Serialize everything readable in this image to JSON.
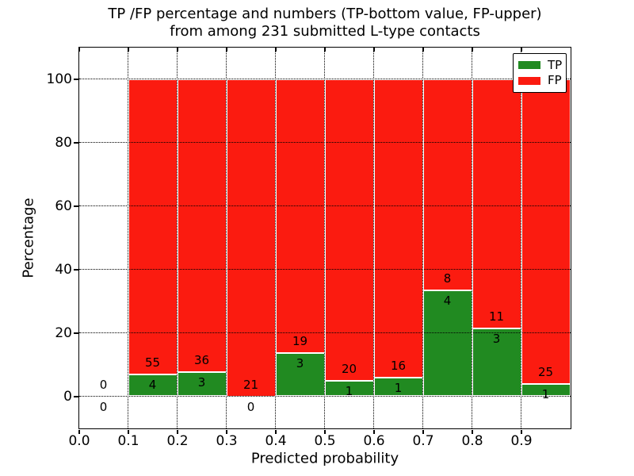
{
  "title": {
    "line1": "TP /FP percentage and numbers (TP-bottom value, FP-upper)",
    "line2": "from among 231 submitted L-type contacts"
  },
  "chart_data": {
    "type": "bar",
    "stacked": true,
    "title": "TP /FP percentage and numbers (TP-bottom value, FP-upper) from among 231 submitted L-type contacts",
    "total_submitted": 231,
    "xlabel": "Predicted probability",
    "ylabel": "Percentage",
    "xlim": [
      0.0,
      1.0
    ],
    "ylim": [
      -10,
      110
    ],
    "grid": "dotted",
    "legend_position": "upper right",
    "x_tick_values": [
      0.0,
      0.1,
      0.2,
      0.3,
      0.4,
      0.5,
      0.6,
      0.7,
      0.8,
      0.9
    ],
    "x_tick_labels": [
      "0.0",
      "0.1",
      "0.2",
      "0.3",
      "0.4",
      "0.5",
      "0.6",
      "0.7",
      "0.8",
      "0.9"
    ],
    "y_tick_values": [
      0,
      20,
      40,
      60,
      80,
      100
    ],
    "y_tick_labels": [
      "0",
      "20",
      "40",
      "60",
      "80",
      "100"
    ],
    "series": [
      {
        "name": "TP",
        "color": "#218a21",
        "position": "bottom"
      },
      {
        "name": "FP",
        "color": "#fb1b10",
        "position": "top"
      }
    ],
    "bins": [
      {
        "x0": 0.0,
        "x1": 0.1,
        "tp": 0,
        "fp": 0,
        "tp_pct": 0.0,
        "fp_pct": 0.0
      },
      {
        "x0": 0.1,
        "x1": 0.2,
        "tp": 4,
        "fp": 55,
        "tp_pct": 6.78,
        "fp_pct": 93.22
      },
      {
        "x0": 0.2,
        "x1": 0.3,
        "tp": 3,
        "fp": 36,
        "tp_pct": 7.69,
        "fp_pct": 92.31
      },
      {
        "x0": 0.3,
        "x1": 0.4,
        "tp": 0,
        "fp": 21,
        "tp_pct": 0.0,
        "fp_pct": 100.0
      },
      {
        "x0": 0.4,
        "x1": 0.5,
        "tp": 3,
        "fp": 19,
        "tp_pct": 13.64,
        "fp_pct": 86.36
      },
      {
        "x0": 0.5,
        "x1": 0.6,
        "tp": 1,
        "fp": 20,
        "tp_pct": 4.76,
        "fp_pct": 95.24
      },
      {
        "x0": 0.6,
        "x1": 0.7,
        "tp": 1,
        "fp": 16,
        "tp_pct": 5.88,
        "fp_pct": 94.12
      },
      {
        "x0": 0.7,
        "x1": 0.8,
        "tp": 4,
        "fp": 8,
        "tp_pct": 33.33,
        "fp_pct": 66.67
      },
      {
        "x0": 0.8,
        "x1": 0.9,
        "tp": 3,
        "fp": 11,
        "tp_pct": 21.43,
        "fp_pct": 78.57
      },
      {
        "x0": 0.9,
        "x1": 1.0,
        "tp": 1,
        "fp": 25,
        "tp_pct": 3.85,
        "fp_pct": 96.15
      }
    ]
  },
  "colors": {
    "background": "#ffffff",
    "axis": "#000000",
    "grid": "#000000",
    "text": "#000000",
    "bar_edge": "#ffffff"
  }
}
